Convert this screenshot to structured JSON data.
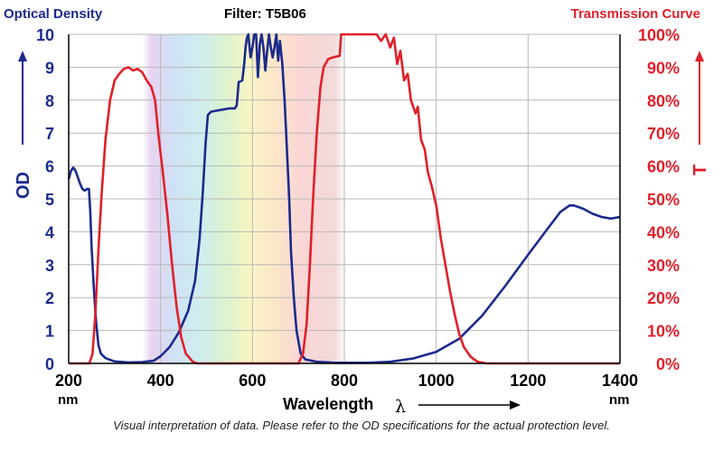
{
  "chart_data": {
    "type": "line",
    "title": "Filter: T5B06",
    "left_axis_title": "Optical Density",
    "right_axis_title": "Transmission Curve",
    "xlabel": "Wavelength",
    "xlabel_symbol": "λ",
    "x_unit": "nm",
    "xlim": [
      200,
      1400
    ],
    "x_ticks": [
      "200",
      "400",
      "600",
      "800",
      "1000",
      "1200",
      "1400"
    ],
    "ylabel_left": "OD",
    "ylim_left": [
      0,
      10
    ],
    "y_ticks_left": [
      "0",
      "1",
      "2",
      "3",
      "4",
      "5",
      "6",
      "7",
      "8",
      "9",
      "10"
    ],
    "ylabel_right": "T",
    "ylim_right": [
      0,
      100
    ],
    "y_ticks_right": [
      "0%",
      "10%",
      "20%",
      "30%",
      "40%",
      "50%",
      "60%",
      "70%",
      "80%",
      "90%",
      "100%"
    ],
    "grid": true,
    "colors": {
      "od": "#1c2a8c",
      "transmission": "#e0202a",
      "axis": "#000000"
    },
    "series": [
      {
        "axis": "left",
        "points": [
          [
            200,
            5.6
          ],
          [
            205,
            5.85
          ],
          [
            210,
            5.95
          ],
          [
            215,
            5.85
          ],
          [
            220,
            5.65
          ],
          [
            225,
            5.45
          ],
          [
            230,
            5.3
          ],
          [
            235,
            5.25
          ],
          [
            240,
            5.3
          ],
          [
            244,
            5.3
          ],
          [
            247,
            4.6
          ],
          [
            250,
            3.5
          ],
          [
            255,
            2.2
          ],
          [
            260,
            1.2
          ],
          [
            265,
            0.55
          ],
          [
            270,
            0.3
          ],
          [
            280,
            0.16
          ],
          [
            300,
            0.06
          ],
          [
            330,
            0.03
          ],
          [
            360,
            0.04
          ],
          [
            385,
            0.08
          ],
          [
            400,
            0.22
          ],
          [
            420,
            0.5
          ],
          [
            440,
            0.95
          ],
          [
            460,
            1.6
          ],
          [
            475,
            2.5
          ],
          [
            485,
            3.8
          ],
          [
            492,
            5.2
          ],
          [
            498,
            6.7
          ],
          [
            503,
            7.55
          ],
          [
            510,
            7.65
          ],
          [
            530,
            7.7
          ],
          [
            550,
            7.75
          ],
          [
            562,
            7.75
          ],
          [
            566,
            7.85
          ],
          [
            570,
            8.55
          ],
          [
            578,
            8.6
          ],
          [
            582,
            9.1
          ],
          [
            585,
            9.6
          ],
          [
            588,
            9.9
          ],
          [
            591,
            10
          ],
          [
            596,
            9.3
          ],
          [
            600,
            9.6
          ],
          [
            604,
            10
          ],
          [
            608,
            10
          ],
          [
            612,
            8.7
          ],
          [
            616,
            9.7
          ],
          [
            620,
            10
          ],
          [
            624,
            9.6
          ],
          [
            628,
            8.9
          ],
          [
            632,
            9.5
          ],
          [
            636,
            10
          ],
          [
            640,
            9.6
          ],
          [
            644,
            9.3
          ],
          [
            648,
            9.6
          ],
          [
            652,
            10
          ],
          [
            656,
            9.2
          ],
          [
            660,
            9.8
          ],
          [
            665,
            9.1
          ],
          [
            670,
            8.0
          ],
          [
            675,
            6.5
          ],
          [
            680,
            5.0
          ],
          [
            684,
            3.4
          ],
          [
            690,
            2.0
          ],
          [
            696,
            1.0
          ],
          [
            705,
            0.3
          ],
          [
            715,
            0.12
          ],
          [
            740,
            0.05
          ],
          [
            780,
            0.02
          ],
          [
            800,
            0.02
          ],
          [
            850,
            0.02
          ],
          [
            900,
            0.05
          ],
          [
            950,
            0.15
          ],
          [
            1000,
            0.35
          ],
          [
            1050,
            0.75
          ],
          [
            1100,
            1.45
          ],
          [
            1150,
            2.35
          ],
          [
            1200,
            3.3
          ],
          [
            1240,
            4.05
          ],
          [
            1270,
            4.6
          ],
          [
            1290,
            4.8
          ],
          [
            1300,
            4.8
          ],
          [
            1320,
            4.7
          ],
          [
            1340,
            4.55
          ],
          [
            1360,
            4.45
          ],
          [
            1380,
            4.4
          ],
          [
            1400,
            4.45
          ]
        ]
      },
      {
        "axis": "right",
        "points": [
          [
            200,
            0
          ],
          [
            245,
            0
          ],
          [
            252,
            3
          ],
          [
            258,
            15
          ],
          [
            265,
            35
          ],
          [
            272,
            52
          ],
          [
            280,
            68
          ],
          [
            290,
            80
          ],
          [
            300,
            86
          ],
          [
            310,
            88
          ],
          [
            320,
            89.5
          ],
          [
            330,
            90
          ],
          [
            340,
            89
          ],
          [
            350,
            89.5
          ],
          [
            360,
            88.5
          ],
          [
            370,
            86
          ],
          [
            380,
            84
          ],
          [
            388,
            80
          ],
          [
            395,
            70
          ],
          [
            405,
            58
          ],
          [
            415,
            45
          ],
          [
            425,
            30
          ],
          [
            435,
            17
          ],
          [
            445,
            8
          ],
          [
            455,
            3
          ],
          [
            470,
            0.5
          ],
          [
            480,
            0
          ],
          [
            700,
            0
          ],
          [
            710,
            3
          ],
          [
            718,
            12
          ],
          [
            725,
            30
          ],
          [
            732,
            50
          ],
          [
            740,
            70
          ],
          [
            748,
            84
          ],
          [
            755,
            90
          ],
          [
            765,
            92.5
          ],
          [
            775,
            93
          ],
          [
            790,
            93.5
          ],
          [
            793,
            100
          ],
          [
            800,
            100
          ],
          [
            840,
            100
          ],
          [
            870,
            100
          ],
          [
            880,
            98
          ],
          [
            890,
            100
          ],
          [
            900,
            96
          ],
          [
            908,
            99
          ],
          [
            915,
            91
          ],
          [
            922,
            95
          ],
          [
            930,
            86
          ],
          [
            938,
            88
          ],
          [
            945,
            80
          ],
          [
            955,
            76
          ],
          [
            960,
            78
          ],
          [
            967,
            68
          ],
          [
            975,
            65
          ],
          [
            982,
            58
          ],
          [
            990,
            54
          ],
          [
            1000,
            48
          ],
          [
            1010,
            38
          ],
          [
            1020,
            30
          ],
          [
            1030,
            22
          ],
          [
            1040,
            15
          ],
          [
            1050,
            9
          ],
          [
            1060,
            5
          ],
          [
            1075,
            2
          ],
          [
            1090,
            0.5
          ],
          [
            1110,
            0
          ],
          [
            1400,
            0
          ]
        ]
      }
    ]
  },
  "disclaimer": "Visual interpretation of data. Please refer to the OD specifications for the actual protection level."
}
